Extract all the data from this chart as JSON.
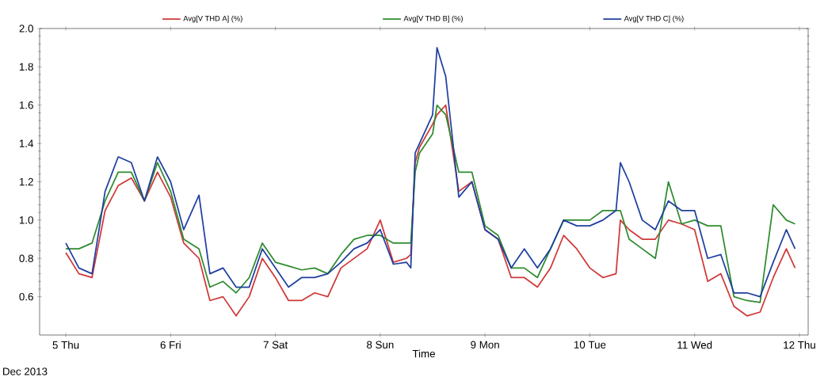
{
  "chart_data": {
    "type": "line",
    "xlabel": "Time",
    "annotations": [
      "Dec 2013"
    ],
    "x": [
      "2013-12-05T00:00",
      "2013-12-05T03:00",
      "2013-12-05T06:00",
      "2013-12-05T09:00",
      "2013-12-05T12:00",
      "2013-12-05T15:00",
      "2013-12-05T18:00",
      "2013-12-05T21:00",
      "2013-12-06T00:00",
      "2013-12-06T03:00",
      "2013-12-06T06:30",
      "2013-12-06T09:00",
      "2013-12-06T12:00",
      "2013-12-06T15:00",
      "2013-12-06T18:00",
      "2013-12-06T21:00",
      "2013-12-07T00:00",
      "2013-12-07T03:00",
      "2013-12-07T06:00",
      "2013-12-07T09:00",
      "2013-12-07T12:00",
      "2013-12-07T15:00",
      "2013-12-07T18:00",
      "2013-12-07T21:00",
      "2013-12-08T00:00",
      "2013-12-08T03:00",
      "2013-12-08T06:00",
      "2013-12-08T07:00",
      "2013-12-08T08:00",
      "2013-12-08T09:00",
      "2013-12-08T12:00",
      "2013-12-08T13:00",
      "2013-12-08T15:00",
      "2013-12-08T18:00",
      "2013-12-08T21:00",
      "2013-12-09T00:00",
      "2013-12-09T03:00",
      "2013-12-09T06:00",
      "2013-12-09T09:00",
      "2013-12-09T12:00",
      "2013-12-09T15:00",
      "2013-12-09T18:00",
      "2013-12-09T21:00",
      "2013-12-10T00:00",
      "2013-12-10T03:00",
      "2013-12-10T06:00",
      "2013-12-10T07:00",
      "2013-12-10T09:00",
      "2013-12-10T12:00",
      "2013-12-10T15:00",
      "2013-12-10T18:00",
      "2013-12-10T21:00",
      "2013-12-11T00:00",
      "2013-12-11T03:00",
      "2013-12-11T06:00",
      "2013-12-11T09:00",
      "2013-12-11T12:00",
      "2013-12-11T15:00",
      "2013-12-11T18:00",
      "2013-12-11T21:00",
      "2013-12-11T23:00"
    ],
    "series": [
      {
        "name": "Avg[V THD A] (%)",
        "color": "#d03838",
        "values": [
          0.83,
          0.72,
          0.7,
          1.05,
          1.18,
          1.22,
          1.1,
          1.25,
          1.12,
          0.88,
          0.8,
          0.58,
          0.6,
          0.5,
          0.6,
          0.8,
          0.7,
          0.58,
          0.58,
          0.62,
          0.6,
          0.75,
          0.8,
          0.85,
          1.0,
          0.78,
          0.8,
          0.82,
          1.3,
          1.38,
          1.5,
          1.55,
          1.6,
          1.15,
          1.2,
          0.95,
          0.9,
          0.7,
          0.7,
          0.65,
          0.75,
          0.92,
          0.85,
          0.75,
          0.7,
          0.72,
          1.0,
          0.95,
          0.9,
          0.9,
          1.0,
          0.98,
          0.95,
          0.68,
          0.72,
          0.55,
          0.5,
          0.52,
          0.7,
          0.85,
          0.75
        ]
      },
      {
        "name": "Avg[V THD B] (%)",
        "color": "#2e8b2e",
        "values": [
          0.85,
          0.85,
          0.88,
          1.1,
          1.25,
          1.25,
          1.1,
          1.3,
          1.15,
          0.9,
          0.85,
          0.65,
          0.68,
          0.62,
          0.7,
          0.88,
          0.78,
          0.76,
          0.74,
          0.75,
          0.72,
          0.82,
          0.9,
          0.92,
          0.92,
          0.88,
          0.88,
          0.88,
          1.25,
          1.35,
          1.45,
          1.6,
          1.55,
          1.25,
          1.25,
          0.97,
          0.92,
          0.75,
          0.75,
          0.7,
          0.85,
          1.0,
          1.0,
          1.0,
          1.05,
          1.05,
          1.05,
          0.9,
          0.85,
          0.8,
          1.2,
          0.98,
          1.0,
          0.97,
          0.97,
          0.6,
          0.58,
          0.57,
          1.08,
          1.0,
          0.98
        ]
      },
      {
        "name": "Avg[V THD C] (%)",
        "color": "#1f3f9f",
        "values": [
          0.88,
          0.75,
          0.72,
          1.15,
          1.33,
          1.3,
          1.1,
          1.33,
          1.2,
          0.95,
          1.13,
          0.72,
          0.75,
          0.65,
          0.65,
          0.85,
          0.75,
          0.65,
          0.7,
          0.7,
          0.72,
          0.78,
          0.85,
          0.88,
          0.95,
          0.77,
          0.78,
          0.75,
          1.35,
          1.4,
          1.55,
          1.9,
          1.75,
          1.12,
          1.2,
          0.95,
          0.9,
          0.75,
          0.85,
          0.75,
          0.85,
          1.0,
          0.97,
          0.97,
          1.0,
          1.05,
          1.3,
          1.2,
          1.0,
          0.95,
          1.1,
          1.05,
          1.05,
          0.8,
          0.82,
          0.62,
          0.62,
          0.6,
          0.78,
          0.95,
          0.85
        ]
      }
    ],
    "xlim": [
      "2013-12-04T18:00",
      "2013-12-12T02:00"
    ],
    "xticks": [
      {
        "value": "2013-12-05",
        "label": "5 Thu"
      },
      {
        "value": "2013-12-06",
        "label": "6 Fri"
      },
      {
        "value": "2013-12-07",
        "label": "7 Sat"
      },
      {
        "value": "2013-12-08",
        "label": "8 Sun"
      },
      {
        "value": "2013-12-09",
        "label": "9 Mon"
      },
      {
        "value": "2013-12-10",
        "label": "10 Tue"
      },
      {
        "value": "2013-12-11",
        "label": "11 Wed"
      },
      {
        "value": "2013-12-12",
        "label": "12 Thu"
      }
    ],
    "ylim": [
      0.4,
      2.0
    ],
    "yticks": [
      0.6,
      0.8,
      {
        "value": 1,
        "label": "1.0"
      },
      1.2,
      1.4,
      1.6,
      1.8,
      {
        "value": 2,
        "label": "2.0"
      }
    ],
    "grid": false,
    "legend": "top",
    "marker": "none",
    "line_style": "solid"
  }
}
